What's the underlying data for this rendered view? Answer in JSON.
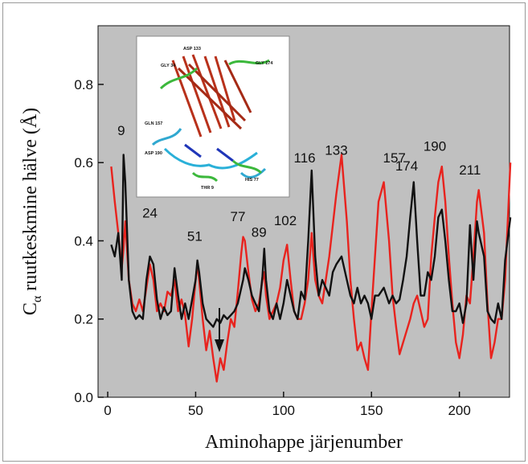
{
  "chart_data": {
    "type": "line",
    "xlabel": "Aminohappe järjenumber",
    "ylabel": {
      "main": "C",
      "subscript": "α",
      "rest": " ruutkeskmine hälve (Å)"
    },
    "x": [
      2,
      4,
      6,
      8,
      9,
      10,
      12,
      14,
      16,
      18,
      20,
      22,
      24,
      26,
      28,
      30,
      32,
      34,
      36,
      38,
      40,
      42,
      44,
      46,
      48,
      50,
      51,
      52,
      54,
      56,
      58,
      60,
      62,
      64,
      66,
      68,
      70,
      72,
      74,
      76,
      77,
      78,
      80,
      82,
      84,
      86,
      88,
      89,
      90,
      92,
      94,
      96,
      98,
      100,
      102,
      104,
      106,
      108,
      110,
      112,
      114,
      116,
      118,
      120,
      122,
      124,
      126,
      128,
      130,
      133,
      136,
      138,
      140,
      142,
      144,
      146,
      148,
      150,
      152,
      154,
      157,
      160,
      162,
      164,
      166,
      168,
      170,
      172,
      174,
      176,
      178,
      180,
      182,
      184,
      186,
      188,
      190,
      192,
      194,
      196,
      198,
      200,
      202,
      204,
      206,
      208,
      210,
      211,
      214,
      216,
      218,
      220,
      222,
      224,
      226,
      229
    ],
    "series": [
      {
        "color": "#e8231e",
        "values": [
          0.59,
          0.5,
          0.42,
          0.33,
          0.38,
          0.45,
          0.3,
          0.24,
          0.22,
          0.25,
          0.22,
          0.28,
          0.34,
          0.3,
          0.22,
          0.24,
          0.22,
          0.27,
          0.26,
          0.3,
          0.22,
          0.25,
          0.21,
          0.13,
          0.2,
          0.3,
          0.34,
          0.3,
          0.2,
          0.12,
          0.17,
          0.1,
          0.04,
          0.1,
          0.07,
          0.14,
          0.2,
          0.18,
          0.27,
          0.37,
          0.41,
          0.4,
          0.32,
          0.25,
          0.22,
          0.24,
          0.3,
          0.32,
          0.26,
          0.2,
          0.22,
          0.24,
          0.28,
          0.35,
          0.39,
          0.3,
          0.22,
          0.2,
          0.2,
          0.24,
          0.3,
          0.42,
          0.3,
          0.26,
          0.24,
          0.3,
          0.36,
          0.44,
          0.52,
          0.62,
          0.45,
          0.3,
          0.2,
          0.12,
          0.14,
          0.1,
          0.07,
          0.22,
          0.36,
          0.5,
          0.55,
          0.4,
          0.26,
          0.18,
          0.11,
          0.14,
          0.17,
          0.2,
          0.24,
          0.26,
          0.22,
          0.18,
          0.2,
          0.36,
          0.46,
          0.55,
          0.59,
          0.5,
          0.36,
          0.24,
          0.14,
          0.1,
          0.16,
          0.26,
          0.24,
          0.36,
          0.5,
          0.53,
          0.42,
          0.24,
          0.1,
          0.14,
          0.2,
          0.2,
          0.3,
          0.6
        ]
      },
      {
        "color": "#111111",
        "values": [
          0.39,
          0.36,
          0.42,
          0.3,
          0.62,
          0.55,
          0.3,
          0.22,
          0.2,
          0.21,
          0.2,
          0.3,
          0.36,
          0.34,
          0.25,
          0.2,
          0.23,
          0.21,
          0.22,
          0.33,
          0.26,
          0.2,
          0.24,
          0.2,
          0.25,
          0.3,
          0.35,
          0.32,
          0.24,
          0.2,
          0.19,
          0.18,
          0.2,
          0.19,
          0.21,
          0.2,
          0.21,
          0.22,
          0.24,
          0.28,
          0.3,
          0.33,
          0.3,
          0.26,
          0.24,
          0.22,
          0.31,
          0.38,
          0.3,
          0.22,
          0.2,
          0.24,
          0.2,
          0.24,
          0.3,
          0.26,
          0.22,
          0.2,
          0.27,
          0.25,
          0.4,
          0.58,
          0.36,
          0.26,
          0.3,
          0.28,
          0.26,
          0.32,
          0.34,
          0.36,
          0.3,
          0.26,
          0.24,
          0.28,
          0.24,
          0.26,
          0.24,
          0.2,
          0.26,
          0.26,
          0.28,
          0.24,
          0.26,
          0.24,
          0.25,
          0.3,
          0.36,
          0.46,
          0.55,
          0.4,
          0.26,
          0.26,
          0.32,
          0.3,
          0.36,
          0.46,
          0.48,
          0.4,
          0.3,
          0.22,
          0.22,
          0.24,
          0.19,
          0.24,
          0.44,
          0.3,
          0.45,
          0.42,
          0.36,
          0.22,
          0.2,
          0.19,
          0.24,
          0.2,
          0.35,
          0.46
        ]
      }
    ],
    "xlim": [
      -5.5,
      228.5
    ],
    "ylim": [
      0,
      0.95
    ],
    "xticks": [
      0,
      50,
      100,
      150,
      200
    ],
    "yticks": [
      {
        "value": 0,
        "label": "0.0"
      },
      0.2,
      0.4,
      0.6,
      0.8
    ],
    "annotations": [
      {
        "text": "9",
        "x": 7.7,
        "y": 0.67
      },
      {
        "text": "24",
        "x": 24,
        "y": 0.46
      },
      {
        "text": "51",
        "x": 49.5,
        "y": 0.4
      },
      {
        "text": "77",
        "x": 74,
        "y": 0.45
      },
      {
        "text": "89",
        "x": 86,
        "y": 0.41
      },
      {
        "text": "102",
        "x": 101,
        "y": 0.44
      },
      {
        "text": "116",
        "x": 112,
        "y": 0.6
      },
      {
        "text": "133",
        "x": 130,
        "y": 0.62
      },
      {
        "text": "157",
        "x": 163,
        "y": 0.6
      },
      {
        "text": "174",
        "x": 170,
        "y": 0.58
      },
      {
        "text": "190",
        "x": 186,
        "y": 0.63
      },
      {
        "text": "211",
        "x": 206,
        "y": 0.57
      }
    ]
  },
  "inset": {
    "labels": [
      "ASP 133",
      "GLY 34",
      "GLY 174",
      "GLN 157",
      "ASP 190",
      "HIS 77",
      "THR 9"
    ]
  }
}
